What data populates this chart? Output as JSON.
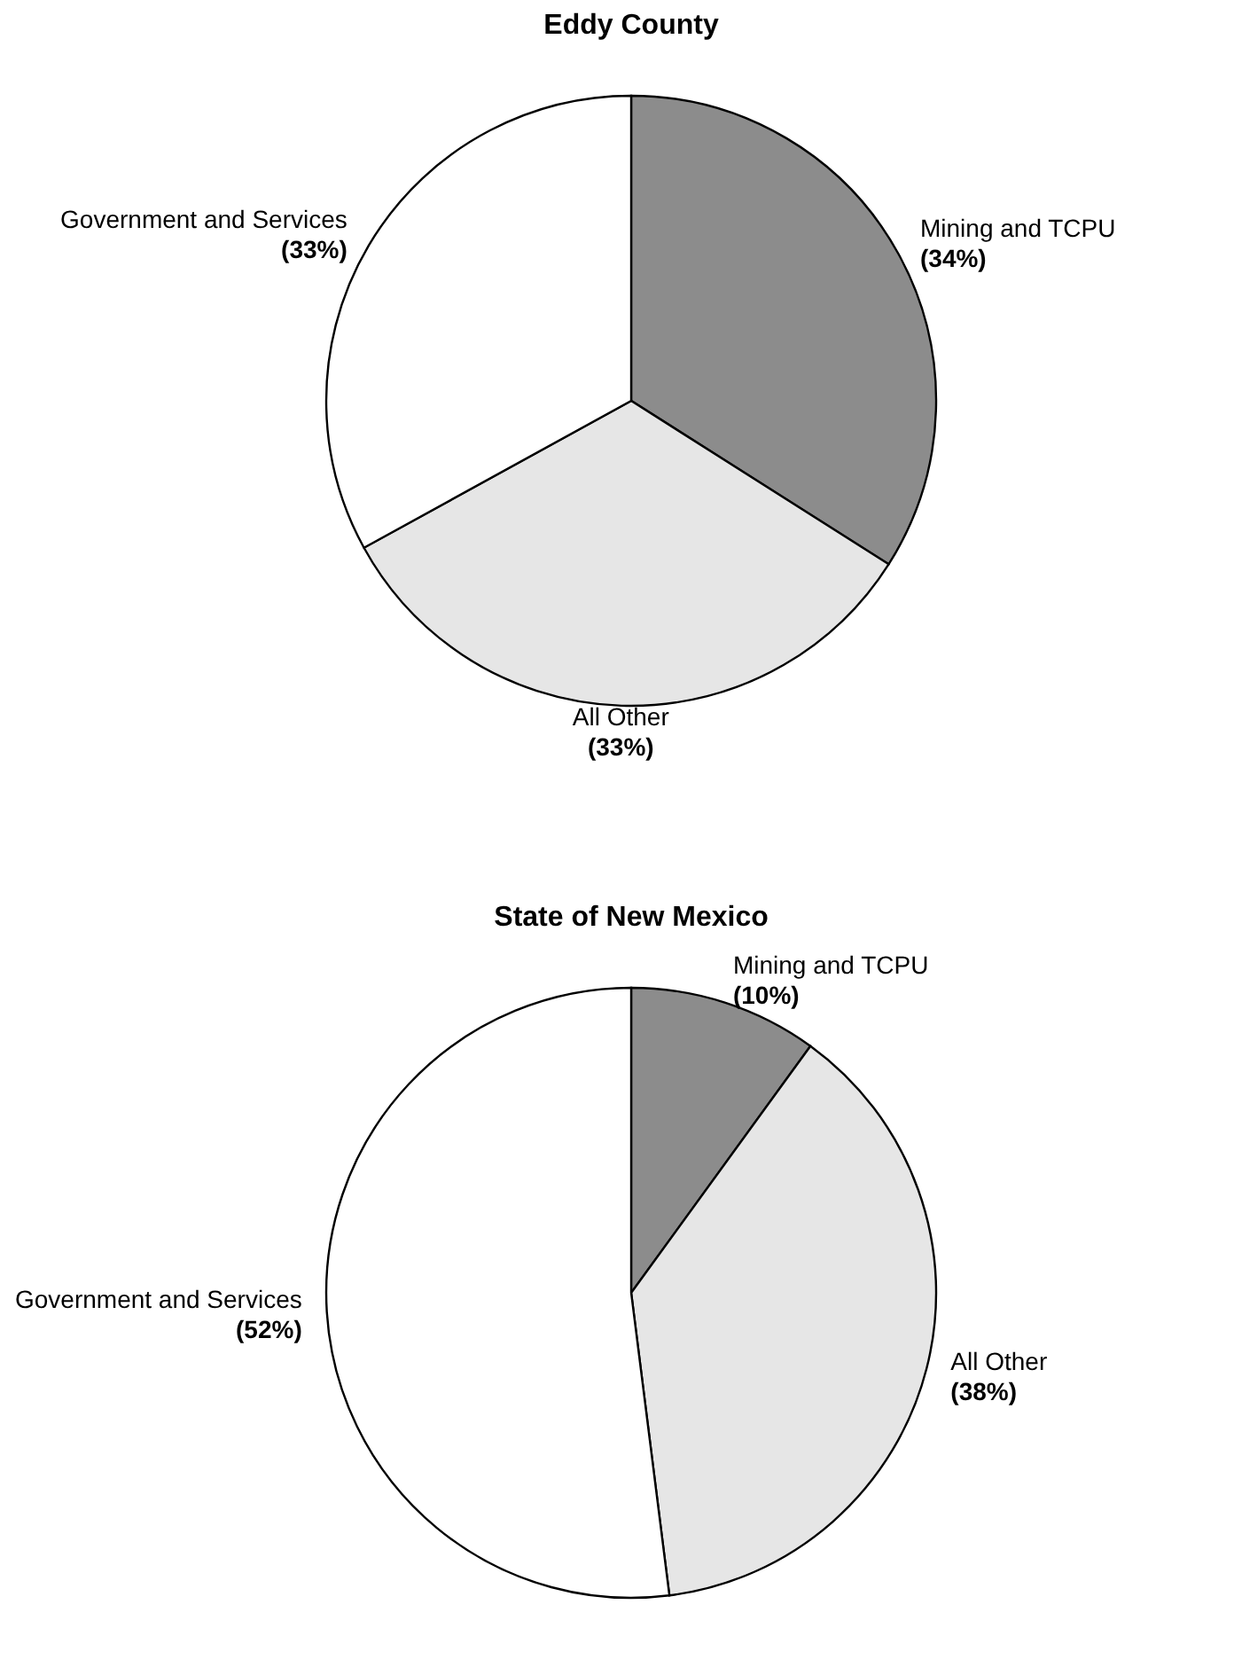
{
  "chart_data": [
    {
      "type": "pie",
      "title": "Eddy County",
      "categories": [
        "Mining and TCPU",
        "All Other",
        "Government and Services"
      ],
      "values": [
        34,
        33,
        33
      ],
      "value_labels": [
        "(34%)",
        "(33%)",
        "(33%)"
      ],
      "colors": [
        "#8c8c8c",
        "#e6e6e6",
        "#ffffff"
      ],
      "legend": false
    },
    {
      "type": "pie",
      "title": "State of New Mexico",
      "categories": [
        "Mining and TCPU",
        "All Other",
        "Government and Services"
      ],
      "values": [
        10,
        38,
        52
      ],
      "value_labels": [
        "(10%)",
        "(38%)",
        "(52%)"
      ],
      "colors": [
        "#8c8c8c",
        "#e6e6e6",
        "#ffffff"
      ],
      "legend": false
    }
  ]
}
